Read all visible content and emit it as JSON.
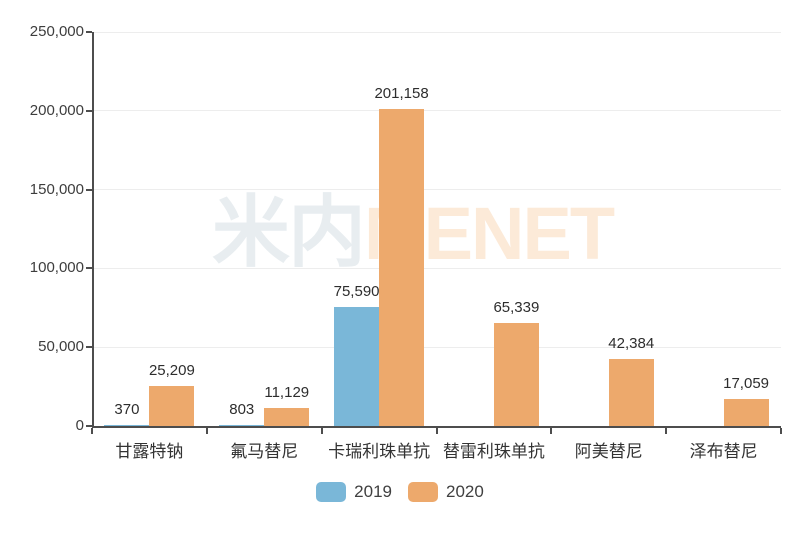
{
  "chart_data": {
    "type": "bar",
    "title": "",
    "categories": [
      "甘露特钠",
      "氟马替尼",
      "卡瑞利珠单抗",
      "替雷利珠单抗",
      "阿美替尼",
      "泽布替尼"
    ],
    "series": [
      {
        "name": "2019",
        "color": "#7ab7d8",
        "values": [
          370,
          803,
          75590,
          null,
          null,
          null
        ],
        "labels": [
          "370",
          "803",
          "75,590",
          "",
          "",
          ""
        ]
      },
      {
        "name": "2020",
        "color": "#eda96c",
        "values": [
          25209,
          11129,
          201158,
          65339,
          42384,
          17059
        ],
        "labels": [
          "25,209",
          "11,129",
          "201,158",
          "65,339",
          "42,384",
          "17,059"
        ]
      }
    ],
    "y_axis": {
      "min": 0,
      "max": 250000,
      "tick_step": 50000,
      "tick_labels": [
        "0",
        "50,000",
        "100,000",
        "150,000",
        "200,000",
        "250,000"
      ]
    },
    "grid": true,
    "legend_position": "bottom"
  },
  "watermark": {
    "text_cn": "米内",
    "text_en": "MENET",
    "color_cn": "#e8edf0",
    "color_en": "#fcead8"
  },
  "style": {
    "axis_color": "#4d4d4d",
    "grid_color": "#ededed",
    "tick_text_color": "#3d3d3d",
    "label_text_color": "#2d2d2d",
    "category_text_color": "#333333",
    "legend_text_color": "#404040"
  }
}
